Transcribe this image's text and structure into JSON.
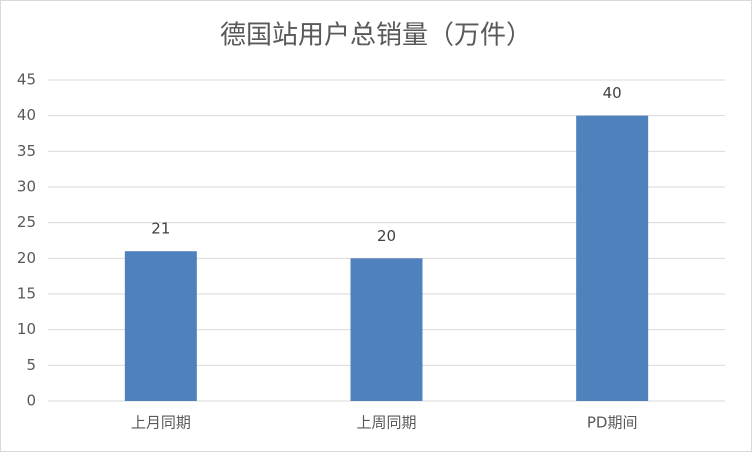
{
  "chart_data": {
    "type": "bar",
    "title": "德国站用户总销量（万件）",
    "categories": [
      "上月同期",
      "上周同期",
      "PD期间"
    ],
    "values": [
      21,
      20,
      40
    ],
    "color": "#4f81bd",
    "ylim": [
      0,
      45
    ],
    "yticks": [
      0,
      5,
      10,
      15,
      20,
      25,
      30,
      35,
      40,
      45
    ],
    "grid": true,
    "data_labels": true
  }
}
